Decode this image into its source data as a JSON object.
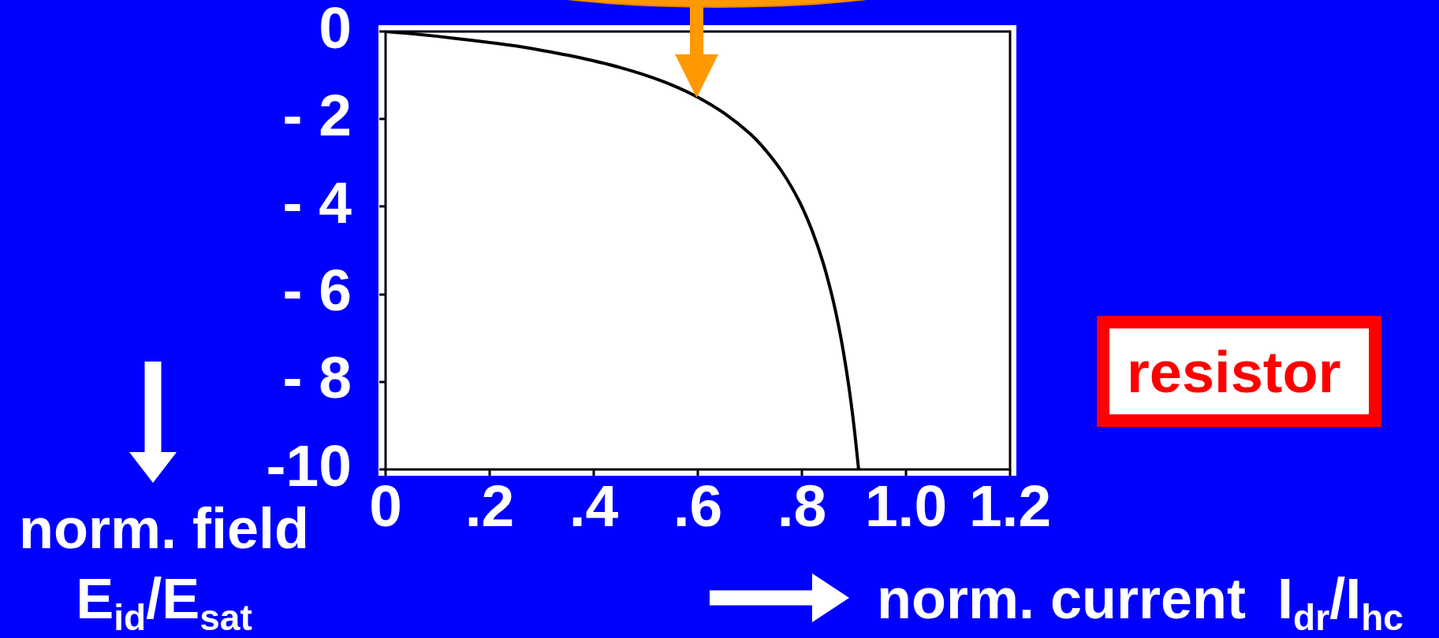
{
  "chart_data": {
    "type": "line",
    "x": [
      0,
      0.05,
      0.1,
      0.15,
      0.2,
      0.25,
      0.3,
      0.35,
      0.4,
      0.45,
      0.5,
      0.55,
      0.6,
      0.65,
      0.7,
      0.72,
      0.74,
      0.76,
      0.78,
      0.8,
      0.82,
      0.84,
      0.85,
      0.86,
      0.87,
      0.88,
      0.89,
      0.9,
      0.909
    ],
    "series": [
      {
        "color": "#000000",
        "values": [
          0,
          -0.05,
          -0.11,
          -0.18,
          -0.25,
          -0.33,
          -0.43,
          -0.54,
          -0.67,
          -0.82,
          -1,
          -1.22,
          -1.5,
          -1.86,
          -2.33,
          -2.57,
          -2.85,
          -3.17,
          -3.55,
          -4,
          -4.56,
          -5.25,
          -5.67,
          -6.14,
          -6.69,
          -7.33,
          -8.09,
          -9,
          -10
        ]
      }
    ],
    "xlim": [
      0,
      1.2
    ],
    "ylim": [
      -10,
      0
    ],
    "xticks": [
      0,
      {
        "value": 0.2,
        "label": ".2"
      },
      {
        "value": 0.4,
        "label": ".4"
      },
      {
        "value": 0.6,
        "label": ".6"
      },
      {
        "value": 0.8,
        "label": ".8"
      },
      {
        "value": 1,
        "label": "1.0"
      },
      1.2
    ],
    "yticks": [
      -10,
      {
        "value": -8,
        "label": "- 8"
      },
      {
        "value": -6,
        "label": "- 6"
      },
      {
        "value": -4,
        "label": "- 4"
      },
      {
        "value": -2,
        "label": "- 2"
      },
      0
    ],
    "xlabel": "norm. current  I$_{dr}$/I$_{hc}$",
    "ylabel": "norm. field E$_{id}$/E$_{sat}$",
    "annotations": [
      "resistor"
    ],
    "marker": "none",
    "line_style": "solid"
  }
}
